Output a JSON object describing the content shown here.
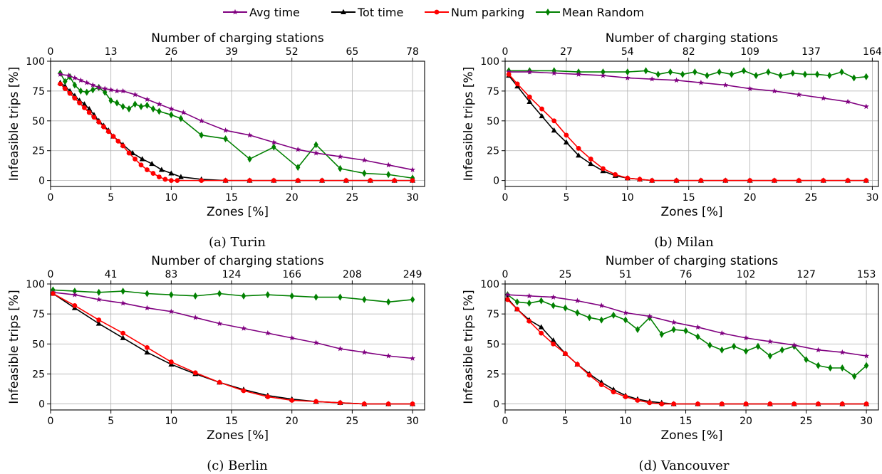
{
  "legend": {
    "placement": "top-center",
    "entries": [
      {
        "label": "Avg time",
        "color": "#800080",
        "marker": "star"
      },
      {
        "label": "Tot time",
        "color": "#000000",
        "marker": "triangle"
      },
      {
        "label": "Num parking",
        "color": "#ff0000",
        "marker": "circle"
      },
      {
        "label": "Mean Random",
        "color": "#008000",
        "marker": "diamond"
      }
    ]
  },
  "chart_data": [
    {
      "type": "line",
      "caption": "(a) Turin",
      "xlabel": "Zones [%]",
      "ylabel": "Infeasible trips [%]",
      "top_xlabel": "Number of charging stations",
      "xlim": [
        0,
        31
      ],
      "ylim": [
        -5,
        100
      ],
      "xticks": [
        0,
        5,
        10,
        15,
        20,
        25,
        30
      ],
      "yticks": [
        0,
        25,
        50,
        75,
        100
      ],
      "top_ticklabels": [
        "0",
        "13",
        "26",
        "39",
        "52",
        "65",
        "78"
      ],
      "grid": true,
      "series": [
        {
          "name": "Avg time",
          "x": [
            0.8,
            1.5,
            2.0,
            2.5,
            3.0,
            3.5,
            4.0,
            4.5,
            5.0,
            5.5,
            6.0,
            7.0,
            8.0,
            9.0,
            10.0,
            11.0,
            12.5,
            14.5,
            16.5,
            18.5,
            20.5,
            22.0,
            24.0,
            26.0,
            28.0,
            30.0
          ],
          "y": [
            89,
            88,
            86,
            84,
            82,
            80,
            78,
            77,
            76,
            75,
            75,
            72,
            68,
            64,
            60,
            57,
            50,
            42,
            38,
            32,
            26,
            23,
            20,
            17,
            13,
            9
          ]
        },
        {
          "name": "Tot time",
          "x": [
            0.8,
            1.2,
            1.6,
            2.0,
            2.4,
            2.8,
            3.2,
            3.6,
            4.0,
            4.4,
            4.8,
            5.2,
            6.0,
            6.8,
            7.6,
            8.4,
            9.2,
            10.0,
            10.8,
            12.5,
            14.5,
            16.5,
            18.5,
            20.5,
            22.5,
            24.5,
            26.5,
            28.5,
            30.0
          ],
          "y": [
            82,
            79,
            75,
            71,
            67,
            64,
            60,
            55,
            50,
            46,
            42,
            37,
            30,
            23,
            18,
            14,
            9,
            6,
            3,
            1,
            0,
            0,
            0,
            0,
            0,
            0,
            0,
            0,
            0
          ]
        },
        {
          "name": "Num parking",
          "x": [
            0.8,
            1.2,
            1.6,
            2.0,
            2.4,
            2.8,
            3.2,
            3.6,
            4.0,
            4.4,
            4.8,
            5.2,
            5.6,
            6.0,
            6.5,
            7.0,
            7.5,
            8.0,
            8.5,
            9.0,
            9.5,
            10.0,
            10.5,
            12.5,
            14.5,
            16.5,
            18.5,
            20.5,
            22.5,
            24.5,
            26.5,
            28.5,
            30.0
          ],
          "y": [
            81,
            77,
            73,
            69,
            65,
            61,
            57,
            53,
            49,
            45,
            41,
            37,
            33,
            29,
            23,
            18,
            13,
            9,
            6,
            3,
            1,
            0,
            0,
            0,
            0,
            0,
            0,
            0,
            0,
            0,
            0,
            0,
            0
          ]
        },
        {
          "name": "Mean Random",
          "x": [
            0.8,
            1.2,
            1.6,
            2.0,
            2.5,
            3.0,
            3.5,
            4.0,
            4.5,
            5.0,
            5.5,
            6.0,
            6.5,
            7.0,
            7.5,
            8.0,
            8.5,
            9.0,
            10.0,
            10.8,
            12.5,
            14.5,
            16.5,
            18.5,
            20.5,
            22.0,
            24.0,
            26.0,
            28.0,
            30.0
          ],
          "y": [
            90,
            83,
            87,
            80,
            75,
            74,
            76,
            78,
            74,
            67,
            65,
            62,
            60,
            64,
            62,
            63,
            60,
            58,
            55,
            52,
            38,
            35,
            18,
            28,
            11,
            30,
            10,
            6,
            5,
            2
          ]
        }
      ]
    },
    {
      "type": "line",
      "caption": "(b) Milan",
      "xlabel": "Zones [%]",
      "ylabel": "Infeasible trips [%]",
      "top_xlabel": "Number of charging stations",
      "xlim": [
        0,
        30.5
      ],
      "ylim": [
        -5,
        100
      ],
      "xticks": [
        0,
        5,
        10,
        15,
        20,
        25,
        30
      ],
      "yticks": [
        0,
        25,
        50,
        75,
        100
      ],
      "top_ticklabels": [
        "0",
        "27",
        "54",
        "82",
        "109",
        "137",
        "164"
      ],
      "grid": true,
      "series": [
        {
          "name": "Avg time",
          "x": [
            0.3,
            2,
            4,
            6,
            8,
            10,
            12,
            14,
            16,
            18,
            20,
            22,
            24,
            26,
            28,
            29.5
          ],
          "y": [
            91,
            91,
            90,
            89,
            88,
            86,
            85,
            84,
            82,
            80,
            77,
            75,
            72,
            69,
            66,
            62
          ]
        },
        {
          "name": "Tot time",
          "x": [
            0.3,
            1,
            2,
            3,
            4,
            5,
            6,
            7,
            8,
            9,
            10,
            11,
            12,
            14,
            16,
            18,
            20,
            22,
            24,
            26,
            28,
            29.5
          ],
          "y": [
            88,
            79,
            66,
            54,
            42,
            32,
            21,
            14,
            8,
            4,
            2,
            1,
            0,
            0,
            0,
            0,
            0,
            0,
            0,
            0,
            0,
            0
          ]
        },
        {
          "name": "Num parking",
          "x": [
            0.3,
            1,
            2,
            3,
            4,
            5,
            6,
            7,
            8,
            9,
            10,
            11,
            12,
            14,
            16,
            18,
            20,
            22,
            24,
            26,
            28,
            29.5
          ],
          "y": [
            89,
            81,
            70,
            60,
            50,
            38,
            27,
            18,
            10,
            5,
            2,
            1,
            0,
            0,
            0,
            0,
            0,
            0,
            0,
            0,
            0,
            0
          ]
        },
        {
          "name": "Mean Random",
          "x": [
            0.3,
            2,
            4,
            6,
            8,
            10,
            11.5,
            12.5,
            13.5,
            14.5,
            15.5,
            16.5,
            17.5,
            18.5,
            19.5,
            20.5,
            21.5,
            22.5,
            23.5,
            24.5,
            25.5,
            26.5,
            27.5,
            28.5,
            29.5
          ],
          "y": [
            92,
            92,
            92,
            91,
            91,
            91,
            92,
            89,
            91,
            89,
            91,
            88,
            91,
            89,
            92,
            88,
            91,
            88,
            90,
            89,
            89,
            88,
            91,
            86,
            87
          ]
        }
      ]
    },
    {
      "type": "line",
      "caption": "(c) Berlin",
      "xlabel": "Zones [%]",
      "ylabel": "Infeasible trips [%]",
      "top_xlabel": "Number of charging stations",
      "xlim": [
        0,
        31
      ],
      "ylim": [
        -5,
        100
      ],
      "xticks": [
        0,
        5,
        10,
        15,
        20,
        25,
        30
      ],
      "yticks": [
        0,
        25,
        50,
        75,
        100
      ],
      "top_ticklabels": [
        "0",
        "41",
        "83",
        "124",
        "166",
        "208",
        "249"
      ],
      "grid": true,
      "series": [
        {
          "name": "Avg time",
          "x": [
            0.2,
            2,
            4,
            6,
            8,
            10,
            12,
            14,
            16,
            18,
            20,
            22,
            24,
            26,
            28,
            30
          ],
          "y": [
            93,
            91,
            87,
            84,
            80,
            77,
            72,
            67,
            63,
            59,
            55,
            51,
            46,
            43,
            40,
            38
          ]
        },
        {
          "name": "Tot time",
          "x": [
            0.2,
            2,
            4,
            6,
            8,
            10,
            12,
            14,
            16,
            18,
            20,
            22,
            24,
            26,
            28,
            30
          ],
          "y": [
            92,
            80,
            67,
            55,
            43,
            33,
            25,
            18,
            12,
            7,
            4,
            2,
            1,
            0,
            0,
            0
          ]
        },
        {
          "name": "Num parking",
          "x": [
            0.2,
            2,
            4,
            6,
            8,
            10,
            12,
            14,
            16,
            18,
            20,
            22,
            24,
            26,
            28,
            30
          ],
          "y": [
            92,
            82,
            70,
            59,
            47,
            35,
            26,
            18,
            11,
            6,
            3,
            2,
            1,
            0,
            0,
            0
          ]
        },
        {
          "name": "Mean Random",
          "x": [
            0.2,
            2,
            4,
            6,
            8,
            10,
            12,
            14,
            16,
            18,
            20,
            22,
            24,
            26,
            28,
            30
          ],
          "y": [
            95,
            94,
            93,
            94,
            92,
            91,
            90,
            92,
            90,
            91,
            90,
            89,
            89,
            87,
            85,
            87
          ]
        }
      ]
    },
    {
      "type": "line",
      "caption": "(d) Vancouver",
      "xlabel": "Zones [%]",
      "ylabel": "Infeasible trips [%]",
      "top_xlabel": "Number of charging stations",
      "xlim": [
        0,
        31
      ],
      "ylim": [
        -5,
        100
      ],
      "xticks": [
        0,
        5,
        10,
        15,
        20,
        25,
        30
      ],
      "yticks": [
        0,
        25,
        50,
        75,
        100
      ],
      "top_ticklabels": [
        "0",
        "25",
        "51",
        "76",
        "102",
        "127",
        "153"
      ],
      "grid": true,
      "series": [
        {
          "name": "Avg time",
          "x": [
            0.2,
            2,
            4,
            6,
            8,
            10,
            12,
            14,
            16,
            18,
            20,
            22,
            24,
            26,
            28,
            30
          ],
          "y": [
            91,
            90,
            89,
            86,
            82,
            76,
            73,
            68,
            64,
            59,
            55,
            52,
            49,
            45,
            43,
            40
          ]
        },
        {
          "name": "Tot time",
          "x": [
            0.2,
            1,
            2,
            3,
            4,
            5,
            6,
            7,
            8,
            9,
            10,
            11,
            12,
            13,
            14,
            16,
            18,
            20,
            22,
            24,
            26,
            28,
            30
          ],
          "y": [
            88,
            79,
            70,
            64,
            53,
            42,
            33,
            25,
            18,
            12,
            7,
            4,
            2,
            1,
            0,
            0,
            0,
            0,
            0,
            0,
            0,
            0,
            0
          ]
        },
        {
          "name": "Num parking",
          "x": [
            0.2,
            1,
            2,
            3,
            4,
            5,
            6,
            7,
            8,
            9,
            10,
            11,
            12,
            13,
            14,
            16,
            18,
            20,
            22,
            24,
            26,
            28,
            30
          ],
          "y": [
            87,
            79,
            69,
            59,
            50,
            42,
            33,
            24,
            16,
            10,
            6,
            3,
            1,
            0,
            0,
            0,
            0,
            0,
            0,
            0,
            0,
            0,
            0
          ]
        },
        {
          "name": "Mean Random",
          "x": [
            0.2,
            1,
            2,
            3,
            4,
            5,
            6,
            7,
            8,
            9,
            10,
            11,
            12,
            13,
            14,
            15,
            16,
            17,
            18,
            19,
            20,
            21,
            22,
            23,
            24,
            25,
            26,
            27,
            28,
            29,
            30
          ],
          "y": [
            91,
            85,
            84,
            86,
            82,
            80,
            76,
            72,
            70,
            74,
            70,
            62,
            72,
            58,
            62,
            61,
            56,
            49,
            45,
            48,
            44,
            48,
            40,
            45,
            48,
            37,
            32,
            30,
            30,
            23,
            32
          ]
        }
      ]
    }
  ]
}
